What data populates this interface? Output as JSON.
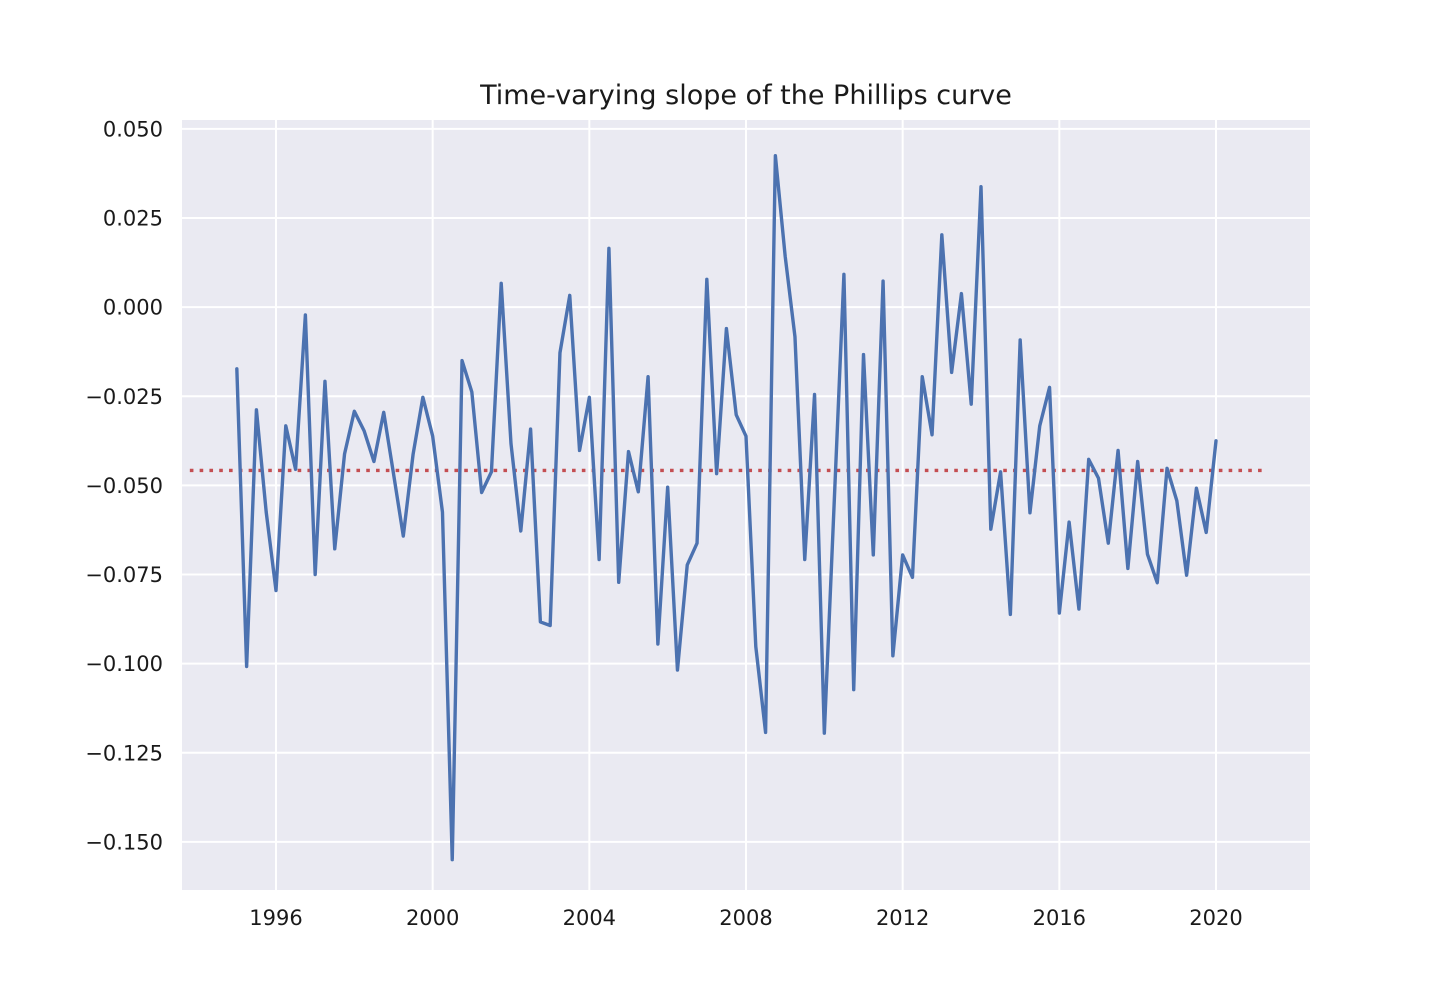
{
  "chart_data": {
    "type": "line",
    "title": "Time-varying slope of the Phillips curve",
    "xlabel": "",
    "ylabel": "",
    "xlim": [
      1993.6,
      2022.4
    ],
    "ylim": [
      -0.1635,
      0.0525
    ],
    "grid": true,
    "legend": "none",
    "x_ticks": [
      1996,
      2000,
      2004,
      2008,
      2012,
      2016,
      2020
    ],
    "x_tick_labels": [
      "1996",
      "2000",
      "2004",
      "2008",
      "2012",
      "2016",
      "2020"
    ],
    "y_ticks": [
      0.05,
      0.025,
      0.0,
      -0.025,
      -0.05,
      -0.075,
      -0.1,
      -0.125,
      -0.15
    ],
    "y_tick_labels": [
      "0.050",
      "0.025",
      "0.000",
      "−0.025",
      "−0.050",
      "−0.075",
      "−0.100",
      "−0.125",
      "−0.150"
    ],
    "series": [
      {
        "color": "#4c72b0",
        "style": "solid",
        "x_start": 1995.0,
        "x_step": 0.25,
        "values": [
          -0.0173,
          -0.1008,
          -0.0288,
          -0.0575,
          -0.0795,
          -0.0333,
          -0.0455,
          -0.0022,
          -0.075,
          -0.0208,
          -0.0678,
          -0.0412,
          -0.0292,
          -0.0347,
          -0.0433,
          -0.0295,
          -0.0467,
          -0.0642,
          -0.0413,
          -0.0253,
          -0.0362,
          -0.0575,
          -0.155,
          -0.015,
          -0.0238,
          -0.052,
          -0.0462,
          0.0067,
          -0.0383,
          -0.0628,
          -0.0342,
          -0.0883,
          -0.0893,
          -0.0128,
          0.0033,
          -0.0402,
          -0.0253,
          -0.0708,
          0.0165,
          -0.0772,
          -0.0405,
          -0.0518,
          -0.0195,
          -0.0945,
          -0.0505,
          -0.1018,
          -0.0723,
          -0.0662,
          0.0078,
          -0.0467,
          -0.006,
          -0.0302,
          -0.0362,
          -0.0952,
          -0.1193,
          0.0425,
          0.0143,
          -0.0083,
          -0.0708,
          -0.0245,
          -0.1195,
          -0.0553,
          0.0092,
          -0.1073,
          -0.0133,
          -0.0695,
          0.0073,
          -0.0978,
          -0.0695,
          -0.0758,
          -0.0195,
          -0.0358,
          0.0203,
          -0.0183,
          0.0038,
          -0.0272,
          0.0338,
          -0.0623,
          -0.0462,
          -0.0862,
          -0.0092,
          -0.0577,
          -0.0333,
          -0.0225,
          -0.0858,
          -0.0603,
          -0.0847,
          -0.0427,
          -0.048,
          -0.0662,
          -0.0402,
          -0.0733,
          -0.0433,
          -0.0693,
          -0.0773,
          -0.0452,
          -0.0543,
          -0.0752,
          -0.0508,
          -0.0632,
          -0.0375
        ]
      },
      {
        "color": "#c44e52",
        "style": "dotted",
        "x": [
          1993.8,
          2021.2
        ],
        "values": [
          -0.0458,
          -0.0458
        ]
      }
    ]
  }
}
